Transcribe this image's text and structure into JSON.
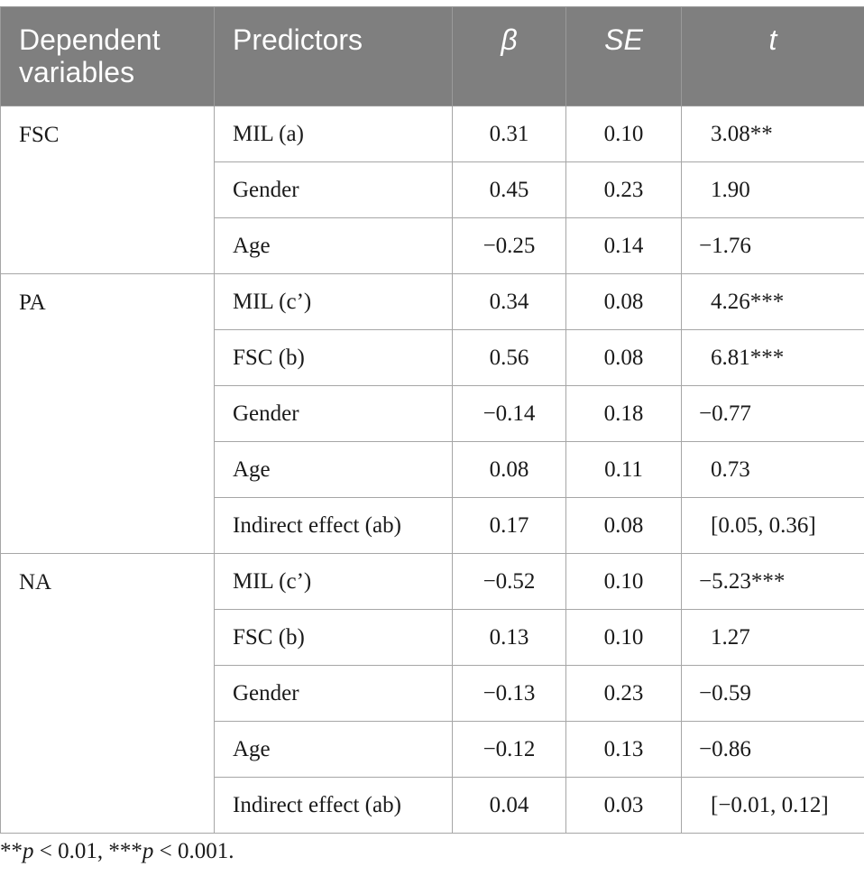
{
  "table": {
    "headers": {
      "dependent": "Dependent variables",
      "predictors": "Predictors",
      "beta": "β",
      "se": "SE",
      "t": "t"
    },
    "groups": [
      {
        "dependent": "FSC",
        "rows": [
          {
            "predictor": "MIL (a)",
            "beta": "0.31",
            "se": "0.10",
            "t": "3.08**"
          },
          {
            "predictor": "Gender",
            "beta": "0.45",
            "se": "0.23",
            "t": "1.90"
          },
          {
            "predictor": "Age",
            "beta": "−0.25",
            "se": "0.14",
            "t": "−1.76"
          }
        ]
      },
      {
        "dependent": "PA",
        "rows": [
          {
            "predictor": "MIL (c’)",
            "beta": "0.34",
            "se": "0.08",
            "t": "4.26***"
          },
          {
            "predictor": "FSC (b)",
            "beta": "0.56",
            "se": "0.08",
            "t": "6.81***"
          },
          {
            "predictor": "Gender",
            "beta": "−0.14",
            "se": "0.18",
            "t": "−0.77"
          },
          {
            "predictor": "Age",
            "beta": "0.08",
            "se": "0.11",
            "t": "0.73"
          },
          {
            "predictor": "Indirect effect (ab)",
            "beta": "0.17",
            "se": "0.08",
            "t": "[0.05, 0.36]"
          }
        ]
      },
      {
        "dependent": "NA",
        "rows": [
          {
            "predictor": "MIL (c’)",
            "beta": "−0.52",
            "se": "0.10",
            "t": "−5.23***"
          },
          {
            "predictor": "FSC (b)",
            "beta": "0.13",
            "se": "0.10",
            "t": "1.27"
          },
          {
            "predictor": "Gender",
            "beta": "−0.13",
            "se": "0.23",
            "t": "−0.59"
          },
          {
            "predictor": "Age",
            "beta": "−0.12",
            "se": "0.13",
            "t": "−0.86"
          },
          {
            "predictor": "Indirect effect (ab)",
            "beta": "0.04",
            "se": "0.03",
            "t": "[−0.01, 0.12]"
          }
        ]
      }
    ]
  },
  "footnote": {
    "stars2": "**",
    "p": "p",
    "rest1": " < 0.01, ",
    "stars3": "***",
    "rest2": " < 0.001."
  }
}
